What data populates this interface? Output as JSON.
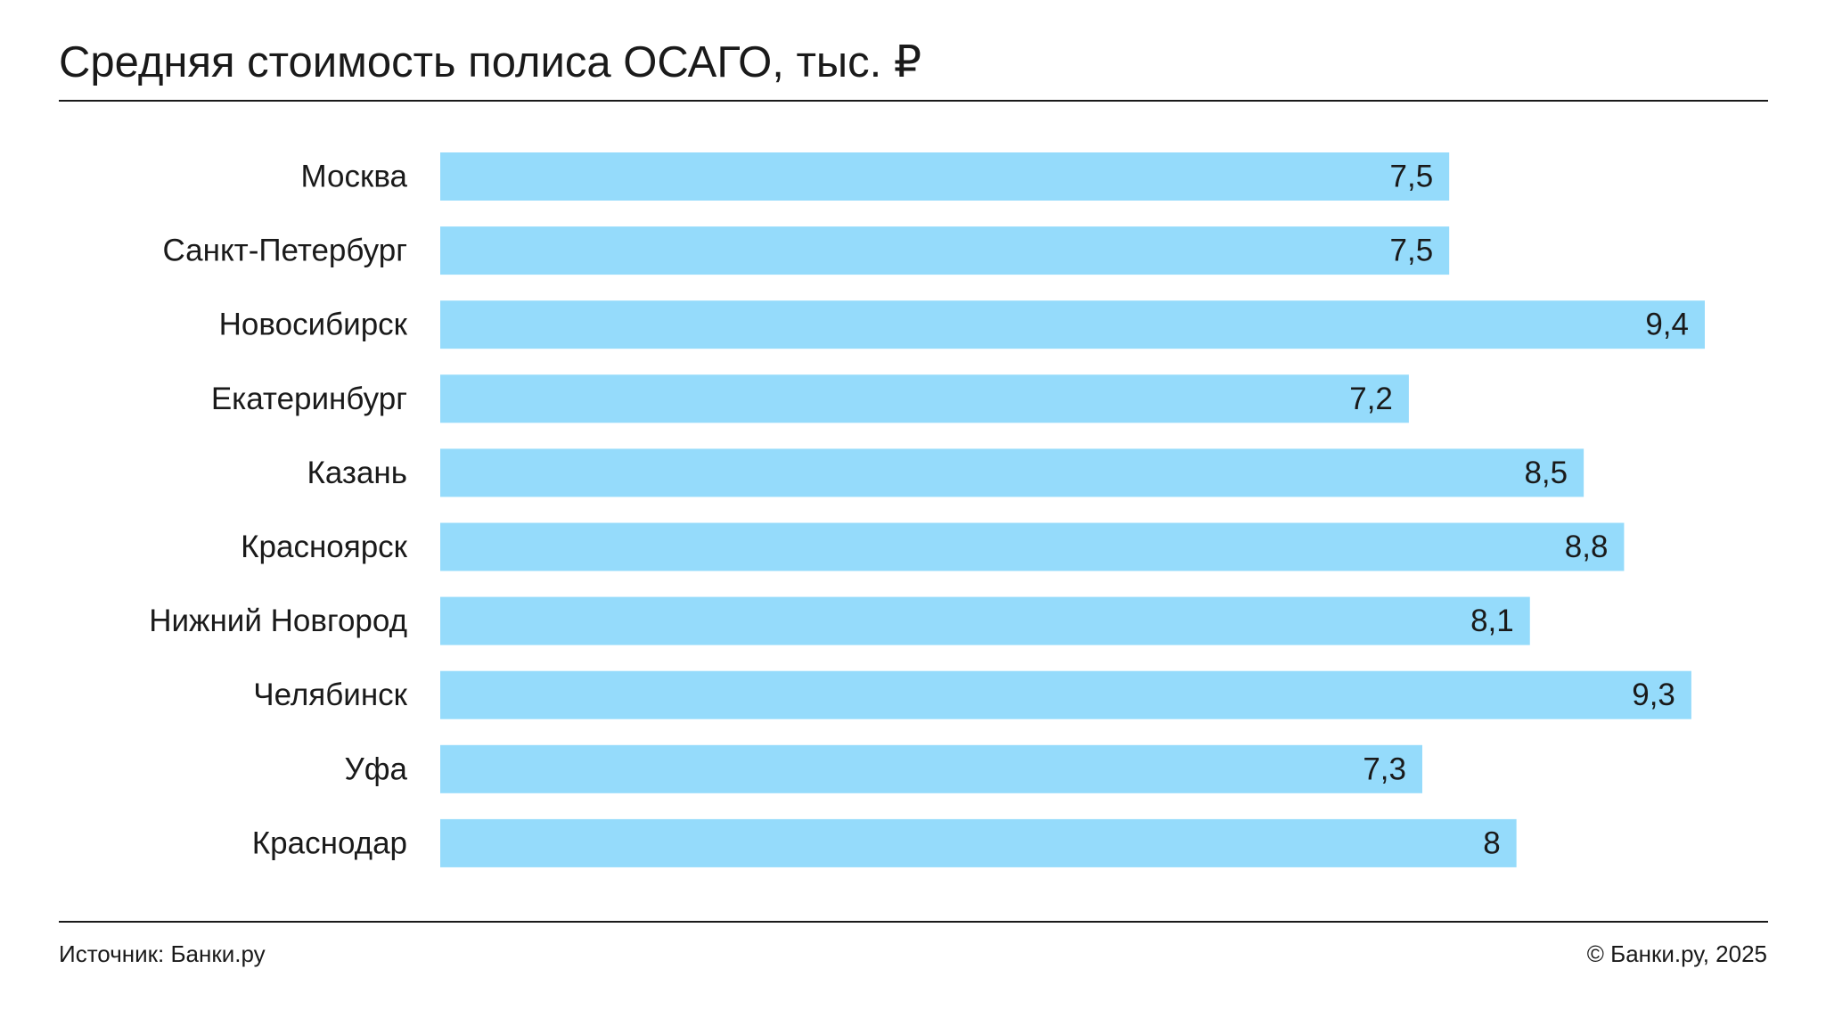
{
  "header": {
    "title": "Средняя стоимость полиса ОСАГО, тыс. ₽"
  },
  "footer": {
    "source": "Источник: Банки.ру",
    "copyright": "© Банки.ру, 2025"
  },
  "colors": {
    "bar": "#95dbfb",
    "text": "#1a1a1a",
    "rule": "#1a1a1a"
  },
  "chart_data": {
    "type": "bar",
    "orientation": "horizontal",
    "title": "Средняя стоимость полиса ОСАГО, тыс. ₽",
    "categories": [
      "Москва",
      "Санкт-Петербург",
      "Новосибирск",
      "Екатеринбург",
      "Казань",
      "Красноярск",
      "Нижний Новгород",
      "Челябинск",
      "Уфа",
      "Краснодар"
    ],
    "values": [
      7.5,
      7.5,
      9.4,
      7.2,
      8.5,
      8.8,
      8.1,
      9.3,
      7.3,
      8
    ],
    "value_labels": [
      "7,5",
      "7,5",
      "9,4",
      "7,2",
      "8,5",
      "8,8",
      "8,1",
      "9,3",
      "7,3",
      "8"
    ],
    "xlim": [
      0,
      9.4
    ],
    "grid": false,
    "legend": "none"
  }
}
